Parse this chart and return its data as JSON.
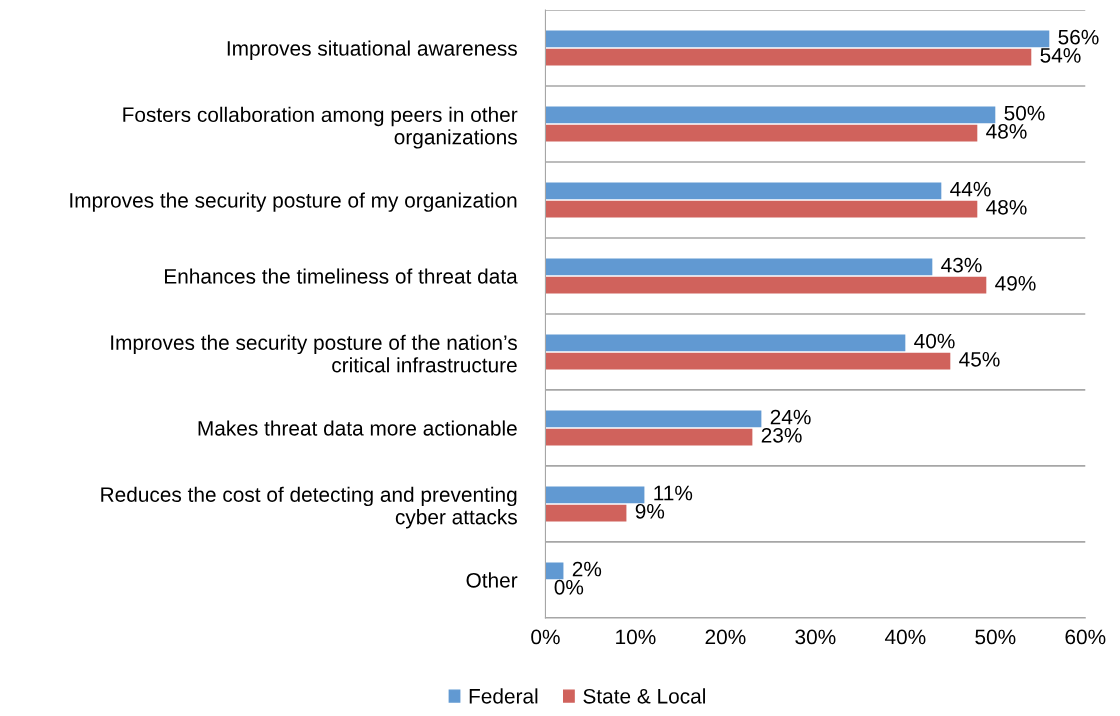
{
  "chart_data": {
    "type": "bar",
    "orientation": "horizontal",
    "categories": [
      "Improves situational awareness",
      "Fosters collaboration among peers in other\norganizations",
      "Improves the security posture of my organization",
      "Enhances the timeliness of threat data",
      "Improves the security posture of the nation’s\ncritical infrastructure",
      "Makes threat data more actionable",
      "Reduces the cost of detecting and preventing\ncyber attacks",
      "Other"
    ],
    "series": [
      {
        "name": "Federal",
        "color": "#6199d2",
        "values": [
          56,
          50,
          44,
          43,
          40,
          24,
          11,
          2
        ],
        "value_labels": [
          "56%",
          "50%",
          "44%",
          "43%",
          "40%",
          "24%",
          "11%",
          "2%"
        ]
      },
      {
        "name": "State & Local",
        "color": "#d0625c",
        "values": [
          54,
          48,
          48,
          49,
          45,
          23,
          9,
          0
        ],
        "value_labels": [
          "54%",
          "48%",
          "48%",
          "49%",
          "45%",
          "23%",
          "9%",
          "0%"
        ]
      }
    ],
    "xlim": [
      0,
      60
    ],
    "xticks": [
      {
        "value": 0,
        "label": "0%"
      },
      {
        "value": 10,
        "label": "10%"
      },
      {
        "value": 20,
        "label": "20%"
      },
      {
        "value": 30,
        "label": "30%"
      },
      {
        "value": 40,
        "label": "40%"
      },
      {
        "value": 50,
        "label": "50%"
      },
      {
        "value": 60,
        "label": "60%"
      }
    ],
    "grid": "y",
    "legend": "bottom"
  }
}
